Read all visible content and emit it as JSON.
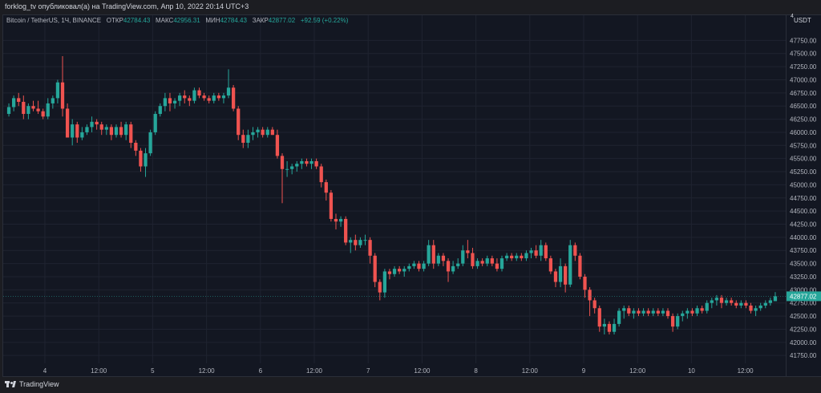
{
  "header": {
    "publish_line": "forklog_tv опубликовал(а) на TradingView.com, Апр 10, 2022 20:14 UTC+3"
  },
  "legend": {
    "symbol": "Bitcoin / TetherUS, 1Ч, BINANCE",
    "open_label": "ОТКР",
    "open_value": "42784.43",
    "high_label": "МАКС",
    "high_value": "42956.31",
    "low_label": "МИН",
    "low_value": "42784.43",
    "close_label": "ЗАКР",
    "close_value": "42877.02",
    "change": "+92.59 (+0.22%)"
  },
  "price_axis": {
    "currency": "USDT",
    "top_marker": "4",
    "last_price_label": "42877.02"
  },
  "footer": {
    "brand": "TradingView"
  },
  "colors": {
    "up": "#26a69a",
    "down": "#ef5350",
    "background": "#131722",
    "frame": "#1c1d22",
    "text": "#b2b5be"
  },
  "chart_data": {
    "type": "candlestick",
    "symbol": "Bitcoin / TetherUS",
    "interval": "1Ч",
    "exchange": "BINANCE",
    "ylim": [
      41600,
      48000
    ],
    "y_ticks": [
      47750,
      47500,
      47250,
      47000,
      46750,
      46500,
      46250,
      46000,
      45750,
      45500,
      45250,
      45000,
      44750,
      44500,
      44250,
      44000,
      43750,
      43500,
      43250,
      43000,
      42750,
      42500,
      42250,
      42000,
      41750
    ],
    "y_tick_labels": [
      "47750.00",
      "47500.00",
      "47250.00",
      "47000.00",
      "46750.00",
      "46500.00",
      "46250.00",
      "46000.00",
      "45750.00",
      "45500.00",
      "45250.00",
      "45000.00",
      "44750.00",
      "44500.00",
      "44250.00",
      "44000.00",
      "43750.00",
      "43500.00",
      "43250.00",
      "43000.00",
      "42750.00",
      "42500.00",
      "42250.00",
      "42000.00",
      "41750.00"
    ],
    "x_tick_labels": [
      "4",
      "12:00",
      "5",
      "12:00",
      "6",
      "12:00",
      "7",
      "12:00",
      "8",
      "12:00",
      "9",
      "12:00",
      "10",
      "12:00"
    ],
    "last_price": 42877.02,
    "candles": [
      [
        46350,
        46550,
        46300,
        46480
      ],
      [
        46480,
        46700,
        46400,
        46650
      ],
      [
        46650,
        46750,
        46500,
        46580
      ],
      [
        46580,
        46700,
        46250,
        46350
      ],
      [
        46350,
        46550,
        46250,
        46500
      ],
      [
        46500,
        46600,
        46400,
        46450
      ],
      [
        46450,
        46600,
        46350,
        46400
      ],
      [
        46400,
        46450,
        46250,
        46300
      ],
      [
        46300,
        46650,
        46250,
        46550
      ],
      [
        46550,
        46700,
        46450,
        46650
      ],
      [
        46650,
        47000,
        46550,
        46950
      ],
      [
        46950,
        47450,
        46300,
        46450
      ],
      [
        46450,
        46550,
        45950,
        45900
      ],
      [
        45900,
        46250,
        45750,
        46150
      ],
      [
        46150,
        46200,
        45800,
        45900
      ],
      [
        45900,
        46100,
        45850,
        46000
      ],
      [
        46000,
        46150,
        45950,
        46100
      ],
      [
        46100,
        46300,
        46000,
        46200
      ],
      [
        46200,
        46250,
        46050,
        46150
      ],
      [
        46150,
        46200,
        45950,
        46050
      ],
      [
        46050,
        46150,
        45950,
        46100
      ],
      [
        46100,
        46150,
        45850,
        45950
      ],
      [
        45950,
        46150,
        45900,
        46100
      ],
      [
        46100,
        46200,
        45900,
        45950
      ],
      [
        45950,
        46200,
        45850,
        46150
      ],
      [
        46150,
        46200,
        45700,
        45800
      ],
      [
        45800,
        45850,
        45550,
        45650
      ],
      [
        45650,
        45700,
        45250,
        45350
      ],
      [
        45350,
        45700,
        45150,
        45600
      ],
      [
        45600,
        46050,
        45550,
        46000
      ],
      [
        46000,
        46400,
        45950,
        46350
      ],
      [
        46350,
        46550,
        46300,
        46500
      ],
      [
        46500,
        46750,
        46400,
        46650
      ],
      [
        46650,
        46750,
        46400,
        46550
      ],
      [
        46550,
        46650,
        46450,
        46600
      ],
      [
        46600,
        46750,
        46500,
        46700
      ],
      [
        46700,
        46800,
        46550,
        46650
      ],
      [
        46650,
        46700,
        46500,
        46600
      ],
      [
        46600,
        46850,
        46550,
        46800
      ],
      [
        46800,
        46850,
        46650,
        46700
      ],
      [
        46700,
        46750,
        46600,
        46650
      ],
      [
        46650,
        46700,
        46550,
        46600
      ],
      [
        46600,
        46750,
        46550,
        46700
      ],
      [
        46700,
        46750,
        46600,
        46650
      ],
      [
        46650,
        46750,
        46550,
        46700
      ],
      [
        46700,
        47200,
        46650,
        46850
      ],
      [
        46850,
        46900,
        46400,
        46450
      ],
      [
        46450,
        46500,
        45850,
        45950
      ],
      [
        45950,
        46050,
        45700,
        45800
      ],
      [
        45800,
        46050,
        45700,
        45950
      ],
      [
        45950,
        46100,
        45850,
        46000
      ],
      [
        46000,
        46100,
        45900,
        46050
      ],
      [
        46050,
        46100,
        45900,
        45950
      ],
      [
        45950,
        46100,
        45900,
        46050
      ],
      [
        46050,
        46100,
        45950,
        45950
      ],
      [
        45950,
        46050,
        45500,
        45550
      ],
      [
        45550,
        45600,
        44650,
        45300
      ],
      [
        45300,
        45450,
        45150,
        45300
      ],
      [
        45300,
        45400,
        45200,
        45350
      ],
      [
        45350,
        45450,
        45250,
        45400
      ],
      [
        45400,
        45500,
        45300,
        45450
      ],
      [
        45450,
        45500,
        45350,
        45400
      ],
      [
        45400,
        45500,
        45300,
        45450
      ],
      [
        45450,
        45500,
        45300,
        45350
      ],
      [
        45350,
        45400,
        44950,
        45050
      ],
      [
        45050,
        45100,
        44700,
        44850
      ],
      [
        44850,
        44900,
        44300,
        44350
      ],
      [
        44350,
        44450,
        44150,
        44300
      ],
      [
        44300,
        44400,
        44200,
        44350
      ],
      [
        44350,
        44400,
        43850,
        43900
      ],
      [
        43900,
        44000,
        43700,
        43950
      ],
      [
        43950,
        44050,
        43750,
        43850
      ],
      [
        43850,
        44000,
        43800,
        43950
      ],
      [
        43950,
        44050,
        43850,
        43950
      ],
      [
        43950,
        44000,
        43500,
        43650
      ],
      [
        43650,
        43700,
        43050,
        43150
      ],
      [
        43150,
        43200,
        42800,
        42950
      ],
      [
        42950,
        43400,
        42850,
        43350
      ],
      [
        43350,
        43400,
        43200,
        43300
      ],
      [
        43300,
        43450,
        43250,
        43400
      ],
      [
        43400,
        43450,
        43300,
        43350
      ],
      [
        43350,
        43450,
        43250,
        43400
      ],
      [
        43400,
        43500,
        43350,
        43450
      ],
      [
        43450,
        43550,
        43400,
        43500
      ],
      [
        43500,
        43550,
        43350,
        43400
      ],
      [
        43400,
        43550,
        43350,
        43500
      ],
      [
        43500,
        43950,
        43450,
        43850
      ],
      [
        43850,
        43950,
        43400,
        43500
      ],
      [
        43500,
        43700,
        43450,
        43650
      ],
      [
        43650,
        43700,
        43450,
        43550
      ],
      [
        43550,
        43600,
        43150,
        43350
      ],
      [
        43350,
        43550,
        43300,
        43450
      ],
      [
        43450,
        43600,
        43400,
        43500
      ],
      [
        43500,
        43850,
        43450,
        43750
      ],
      [
        43750,
        43950,
        43600,
        43700
      ],
      [
        43700,
        43800,
        43400,
        43450
      ],
      [
        43450,
        43600,
        43400,
        43550
      ],
      [
        43550,
        43600,
        43450,
        43500
      ],
      [
        43500,
        43650,
        43450,
        43600
      ],
      [
        43600,
        43650,
        43450,
        43500
      ],
      [
        43500,
        43600,
        43350,
        43400
      ],
      [
        43400,
        43650,
        43350,
        43600
      ],
      [
        43600,
        43700,
        43550,
        43650
      ],
      [
        43650,
        43700,
        43550,
        43600
      ],
      [
        43600,
        43700,
        43550,
        43650
      ],
      [
        43650,
        43700,
        43550,
        43600
      ],
      [
        43600,
        43750,
        43550,
        43700
      ],
      [
        43700,
        43800,
        43600,
        43750
      ],
      [
        43750,
        43850,
        43600,
        43650
      ],
      [
        43650,
        43950,
        43550,
        43850
      ],
      [
        43850,
        43900,
        43550,
        43600
      ],
      [
        43600,
        43650,
        43300,
        43350
      ],
      [
        43350,
        43400,
        43050,
        43150
      ],
      [
        43150,
        43600,
        43050,
        43450
      ],
      [
        43450,
        43500,
        42950,
        43100
      ],
      [
        43100,
        43950,
        43050,
        43850
      ],
      [
        43850,
        43900,
        43550,
        43650
      ],
      [
        43650,
        43700,
        43200,
        43250
      ],
      [
        43250,
        43300,
        42850,
        43000
      ],
      [
        43000,
        43050,
        42500,
        42800
      ],
      [
        42800,
        42850,
        42550,
        42650
      ],
      [
        42650,
        42700,
        42200,
        42300
      ],
      [
        42300,
        42450,
        42150,
        42350
      ],
      [
        42350,
        42400,
        42150,
        42200
      ],
      [
        42200,
        42450,
        42150,
        42350
      ],
      [
        42350,
        42650,
        42300,
        42600
      ],
      [
        42600,
        42700,
        42450,
        42650
      ],
      [
        42650,
        42700,
        42500,
        42550
      ],
      [
        42550,
        42650,
        42450,
        42600
      ],
      [
        42600,
        42650,
        42500,
        42550
      ],
      [
        42550,
        42650,
        42500,
        42600
      ],
      [
        42600,
        42650,
        42500,
        42550
      ],
      [
        42550,
        42650,
        42500,
        42600
      ],
      [
        42600,
        42650,
        42500,
        42550
      ],
      [
        42550,
        42650,
        42500,
        42600
      ],
      [
        42600,
        42650,
        42450,
        42500
      ],
      [
        42500,
        42550,
        42200,
        42300
      ],
      [
        42300,
        42550,
        42250,
        42500
      ],
      [
        42500,
        42600,
        42400,
        42550
      ],
      [
        42550,
        42650,
        42450,
        42600
      ],
      [
        42600,
        42650,
        42500,
        42550
      ],
      [
        42550,
        42700,
        42500,
        42650
      ],
      [
        42650,
        42700,
        42550,
        42600
      ],
      [
        42600,
        42800,
        42550,
        42750
      ],
      [
        42750,
        42850,
        42650,
        42800
      ],
      [
        42800,
        42900,
        42700,
        42850
      ],
      [
        42850,
        42900,
        42650,
        42750
      ],
      [
        42750,
        42850,
        42700,
        42800
      ],
      [
        42800,
        42850,
        42700,
        42750
      ],
      [
        42750,
        42800,
        42650,
        42700
      ],
      [
        42700,
        42800,
        42650,
        42750
      ],
      [
        42750,
        42800,
        42650,
        42700
      ],
      [
        42700,
        42750,
        42550,
        42600
      ],
      [
        42600,
        42700,
        42500,
        42650
      ],
      [
        42650,
        42750,
        42600,
        42700
      ],
      [
        42700,
        42800,
        42650,
        42750
      ],
      [
        42750,
        42850,
        42700,
        42800
      ],
      [
        42784.43,
        42956.31,
        42784.43,
        42877.02
      ]
    ]
  }
}
